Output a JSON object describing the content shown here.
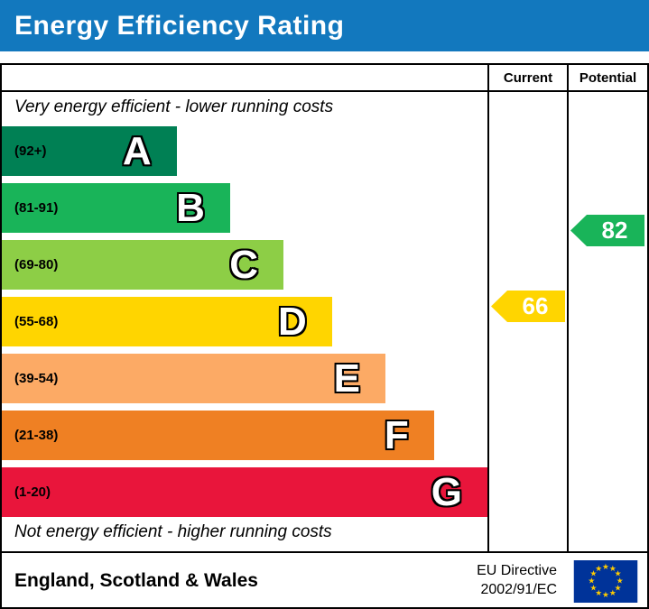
{
  "header": {
    "title": "Energy Efficiency Rating",
    "bg": "#1278be",
    "fg": "#ffffff"
  },
  "columns": {
    "current": "Current",
    "potential": "Potential"
  },
  "notes": {
    "top": "Very energy efficient - lower running costs",
    "bottom": "Not energy efficient - higher running costs"
  },
  "bands": [
    {
      "letter": "A",
      "range": "(92+)",
      "color": "#008054",
      "width_pct": 36
    },
    {
      "letter": "B",
      "range": "(81-91)",
      "color": "#19b459",
      "width_pct": 47
    },
    {
      "letter": "C",
      "range": "(69-80)",
      "color": "#8dce46",
      "width_pct": 58
    },
    {
      "letter": "D",
      "range": "(55-68)",
      "color": "#ffd500",
      "width_pct": 68
    },
    {
      "letter": "E",
      "range": "(39-54)",
      "color": "#fcaa65",
      "width_pct": 79
    },
    {
      "letter": "F",
      "range": "(21-38)",
      "color": "#ef8023",
      "width_pct": 89
    },
    {
      "letter": "G",
      "range": "(1-20)",
      "color": "#e9153b",
      "width_pct": 100
    }
  ],
  "ratings": {
    "current": {
      "value": "66",
      "band": "D",
      "color": "#ffd500"
    },
    "potential": {
      "value": "82",
      "band": "B",
      "color": "#19b459"
    }
  },
  "footer": {
    "region": "England, Scotland & Wales",
    "directive_line1": "EU Directive",
    "directive_line2": "2002/91/EC",
    "eu_flag": {
      "bg": "#003399",
      "stars": "#ffcc00"
    }
  },
  "chart_data": {
    "type": "bar",
    "title": "Energy Efficiency Rating",
    "categories": [
      "A",
      "B",
      "C",
      "D",
      "E",
      "F",
      "G"
    ],
    "band_ranges": [
      "92+",
      "81-91",
      "69-80",
      "55-68",
      "39-54",
      "21-38",
      "1-20"
    ],
    "band_colors": [
      "#008054",
      "#19b459",
      "#8dce46",
      "#ffd500",
      "#fcaa65",
      "#ef8023",
      "#e9153b"
    ],
    "bar_relative_lengths": [
      36,
      47,
      58,
      68,
      79,
      89,
      100
    ],
    "series": [
      {
        "name": "Current",
        "values": [
          66
        ],
        "band": "D"
      },
      {
        "name": "Potential",
        "values": [
          82
        ],
        "band": "B"
      }
    ],
    "annotations": [
      "Very energy efficient - lower running costs",
      "Not energy efficient - higher running costs"
    ],
    "footer_text": "England, Scotland & Wales",
    "directive": "EU Directive 2002/91/EC"
  }
}
